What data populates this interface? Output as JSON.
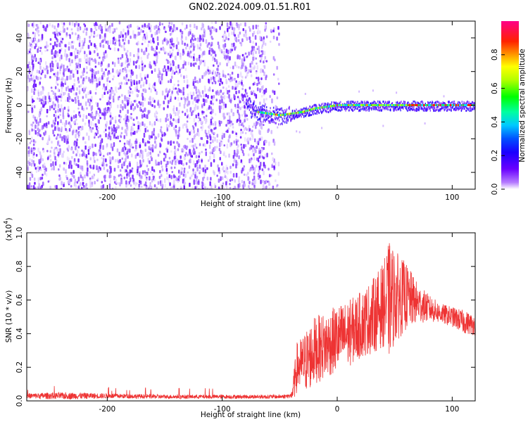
{
  "figure": {
    "title": "GN02.2024.009.01.51.R01"
  },
  "chart_data": [
    {
      "type": "heatmap",
      "title": "GN02.2024.009.01.51.R01",
      "xlabel": "Height of straight line (km)",
      "ylabel": "Frequency (Hz)",
      "xlim": [
        -270,
        120
      ],
      "ylim": [
        -50,
        50
      ],
      "xticks": [
        -200,
        -100,
        0,
        100
      ],
      "yticks": [
        -40,
        -20,
        0,
        20,
        40
      ],
      "colorbar": {
        "label": "Normalized spectral amplitude",
        "range": [
          0,
          1
        ],
        "ticks": [
          0.0,
          0.2,
          0.4,
          0.6,
          0.8
        ],
        "tick_labels": [
          "0.0",
          "0.2",
          "0.4",
          "0.6",
          "0.8"
        ],
        "colormap": [
          "#ffffff",
          "#5a00ff",
          "#0000ff",
          "#00e5ff",
          "#00ff00",
          "#ffff00",
          "#ff8800",
          "#ff0000",
          "#ff00aa"
        ]
      },
      "signal_onset_km": -55,
      "noise_region": [
        -270,
        -55
      ],
      "carrier_trace": {
        "x": [
          -80,
          -75,
          -70,
          -60,
          -50,
          -40,
          -30,
          -20,
          -10,
          0,
          10,
          20,
          30,
          40,
          50,
          60,
          70,
          80,
          90,
          100,
          110,
          120
        ],
        "y": [
          5,
          -2,
          -4,
          -5,
          -6,
          -5,
          -4,
          -2,
          -1,
          0,
          0,
          0,
          0,
          0,
          0,
          0,
          0,
          0,
          0,
          0,
          0,
          0
        ]
      }
    },
    {
      "type": "line",
      "xlabel": "Height of straight line (km)",
      "ylabel": "SNR (10 * v/v)",
      "yunit_label": "(x10",
      "yunit_exp": "4",
      "xlim": [
        -270,
        120
      ],
      "ylim": [
        0,
        1.0
      ],
      "xticks": [
        -200,
        -100,
        0,
        100
      ],
      "yticks": [
        0.0,
        0.2,
        0.4,
        0.6,
        0.8,
        1.0
      ],
      "ytick_labels": [
        "0.0",
        "0.2",
        "0.4",
        "0.6",
        "0.8",
        "1.0"
      ],
      "line_color": "#ee3333",
      "envelope": {
        "x": [
          -270,
          -250,
          -230,
          -200,
          -150,
          -100,
          -50,
          -40,
          -38,
          -35,
          -30,
          -25,
          -20,
          -10,
          0,
          10,
          20,
          30,
          40,
          45,
          50,
          60,
          70,
          80,
          90,
          100,
          110,
          120
        ],
        "mean": [
          0.03,
          0.03,
          0.03,
          0.03,
          0.025,
          0.025,
          0.025,
          0.03,
          0.08,
          0.2,
          0.22,
          0.25,
          0.3,
          0.33,
          0.37,
          0.4,
          0.45,
          0.5,
          0.57,
          0.6,
          0.62,
          0.62,
          0.58,
          0.55,
          0.52,
          0.5,
          0.47,
          0.45
        ],
        "amplitude": [
          0.015,
          0.02,
          0.02,
          0.015,
          0.012,
          0.012,
          0.012,
          0.015,
          0.08,
          0.15,
          0.17,
          0.2,
          0.2,
          0.2,
          0.2,
          0.2,
          0.2,
          0.22,
          0.25,
          0.35,
          0.28,
          0.2,
          0.12,
          0.08,
          0.06,
          0.06,
          0.07,
          0.06
        ]
      }
    }
  ]
}
